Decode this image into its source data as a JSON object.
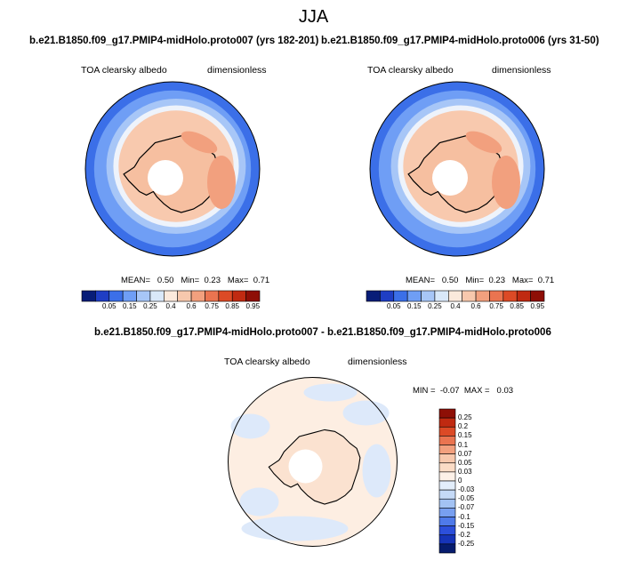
{
  "season": "JJA",
  "panels": [
    {
      "title": "b.e21.B1850.f09_g17.PMIP4-midHolo.proto007 (yrs 182-201)",
      "variable": "TOA clearsky albedo",
      "units": "dimensionless",
      "stats": {
        "mean_label": "MEAN=",
        "mean": "0.50",
        "min_label": "Min=",
        "min": "0.23",
        "max_label": "Max=",
        "max": "0.71"
      }
    },
    {
      "title": "b.e21.B1850.f09_g17.PMIP4-midHolo.proto006 (yrs 31-50)",
      "variable": "TOA clearsky albedo",
      "units": "dimensionless",
      "stats": {
        "mean_label": "MEAN=",
        "mean": "0.50",
        "min_label": "Min=",
        "min": "0.23",
        "max_label": "Max=",
        "max": "0.71"
      }
    },
    {
      "title": "b.e21.B1850.f09_g17.PMIP4-midHolo.proto007 - b.e21.B1850.f09_g17.PMIP4-midHolo.proto006",
      "variable": "TOA clearsky albedo",
      "units": "dimensionless",
      "stats": {
        "min_label": "MIN =",
        "min": "-0.07",
        "max_label": "MAX =",
        "max": "0.03"
      }
    }
  ],
  "chart_data": [
    {
      "type": "heatmap",
      "projection": "south-polar-stereographic",
      "title": "b.e21.B1850.f09_g17.PMIP4-midHolo.proto007 (yrs 182-201)",
      "variable": "TOA clearsky albedo",
      "levels": [
        "0.05",
        "0.15",
        "0.25",
        "0.4",
        "0.6",
        "0.75",
        "0.85",
        "0.95"
      ],
      "colors": [
        "#081d78",
        "#1f3ec4",
        "#3b6fe8",
        "#6f9ef5",
        "#a7c6f7",
        "#d9e8f9",
        "#fbe9dc",
        "#f7c8ad",
        "#f2a07e",
        "#ea7450",
        "#dc4a26",
        "#c02a11",
        "#8e0f06"
      ],
      "mean": 0.5,
      "min": 0.23,
      "max": 0.71
    },
    {
      "type": "heatmap",
      "projection": "south-polar-stereographic",
      "title": "b.e21.B1850.f09_g17.PMIP4-midHolo.proto006 (yrs 31-50)",
      "variable": "TOA clearsky albedo",
      "levels": [
        "0.05",
        "0.15",
        "0.25",
        "0.4",
        "0.6",
        "0.75",
        "0.85",
        "0.95"
      ],
      "colors": [
        "#081d78",
        "#1f3ec4",
        "#3b6fe8",
        "#6f9ef5",
        "#a7c6f7",
        "#d9e8f9",
        "#fbe9dc",
        "#f7c8ad",
        "#f2a07e",
        "#ea7450",
        "#dc4a26",
        "#c02a11",
        "#8e0f06"
      ],
      "mean": 0.5,
      "min": 0.23,
      "max": 0.71
    },
    {
      "type": "heatmap",
      "projection": "south-polar-stereographic",
      "title": "b.e21.B1850.f09_g17.PMIP4-midHolo.proto007 - b.e21.B1850.f09_g17.PMIP4-midHolo.proto006",
      "variable": "TOA clearsky albedo",
      "levels": [
        "0.25",
        "0.2",
        "0.15",
        "0.1",
        "0.07",
        "0.05",
        "0.03",
        "0",
        "-0.03",
        "-0.05",
        "-0.07",
        "-0.1",
        "-0.15",
        "-0.2",
        "-0.25"
      ],
      "colors": [
        "#8e0f06",
        "#c02a11",
        "#dc4a26",
        "#ea7450",
        "#f2a07e",
        "#f7c8ad",
        "#fbdcc6",
        "#fdf1e8",
        "#e3eefb",
        "#c5daf7",
        "#a3c2f3",
        "#789ff0",
        "#4f7aea",
        "#2c4fdb",
        "#1634b8",
        "#061c6e"
      ],
      "min": -0.07,
      "max": 0.03
    }
  ]
}
